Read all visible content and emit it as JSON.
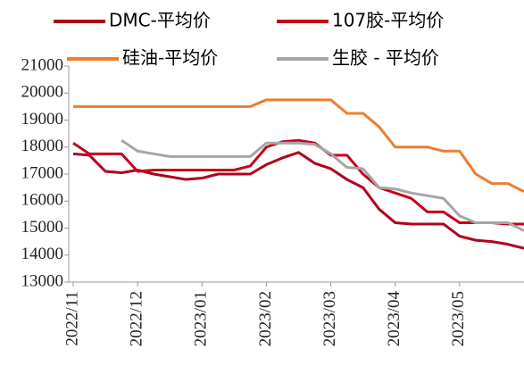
{
  "chart_data": {
    "type": "line",
    "categories": [
      "2022/11",
      null,
      null,
      null,
      "2022/12",
      null,
      null,
      null,
      "2023/01",
      null,
      null,
      null,
      "2023/02",
      null,
      null,
      null,
      "2023/03",
      null,
      null,
      null,
      "2023/04",
      null,
      null,
      null,
      "2023/05",
      null,
      null,
      null,
      null
    ],
    "series": [
      {
        "name": "DMC-平均价",
        "color": "#b0001e",
        "values": [
          17750,
          17700,
          17100,
          17050,
          17150,
          17000,
          16900,
          16800,
          16850,
          17000,
          17000,
          17000,
          17350,
          17600,
          17800,
          17400,
          17200,
          16800,
          16500,
          15700,
          15200,
          15150,
          15150,
          15150,
          14700,
          14550,
          14500,
          14400,
          14250
        ]
      },
      {
        "name": "107胶-平均价",
        "color": "#c8001a",
        "values": [
          18150,
          17750,
          17750,
          17750,
          17100,
          17150,
          17150,
          17150,
          17150,
          17150,
          17150,
          17300,
          18000,
          18200,
          18250,
          18150,
          17700,
          17700,
          17000,
          16500,
          16300,
          16100,
          15600,
          15600,
          15200,
          15200,
          15200,
          15150,
          15150
        ]
      },
      {
        "name": "硅油-平均价",
        "color": "#ed7d31",
        "values": [
          19500,
          19500,
          19500,
          19500,
          19500,
          19500,
          19500,
          19500,
          19500,
          19500,
          19500,
          19500,
          19750,
          19750,
          19750,
          19750,
          19750,
          19250,
          19250,
          18750,
          18000,
          18000,
          18000,
          17850,
          17850,
          17000,
          16650,
          16650,
          16350
        ]
      },
      {
        "name": "生胶 - 平均价",
        "color": "#a6a6a6",
        "values": [
          null,
          null,
          null,
          18250,
          17850,
          17750,
          17650,
          17650,
          17650,
          17650,
          17650,
          17650,
          18150,
          18150,
          18150,
          18100,
          17750,
          17250,
          17200,
          16500,
          16450,
          16300,
          16200,
          16100,
          15450,
          15200,
          15200,
          15200,
          14900
        ]
      }
    ],
    "ylim": [
      13000,
      21000
    ],
    "yticks": [
      13000,
      14000,
      15000,
      16000,
      17000,
      18000,
      19000,
      20000,
      21000
    ]
  }
}
